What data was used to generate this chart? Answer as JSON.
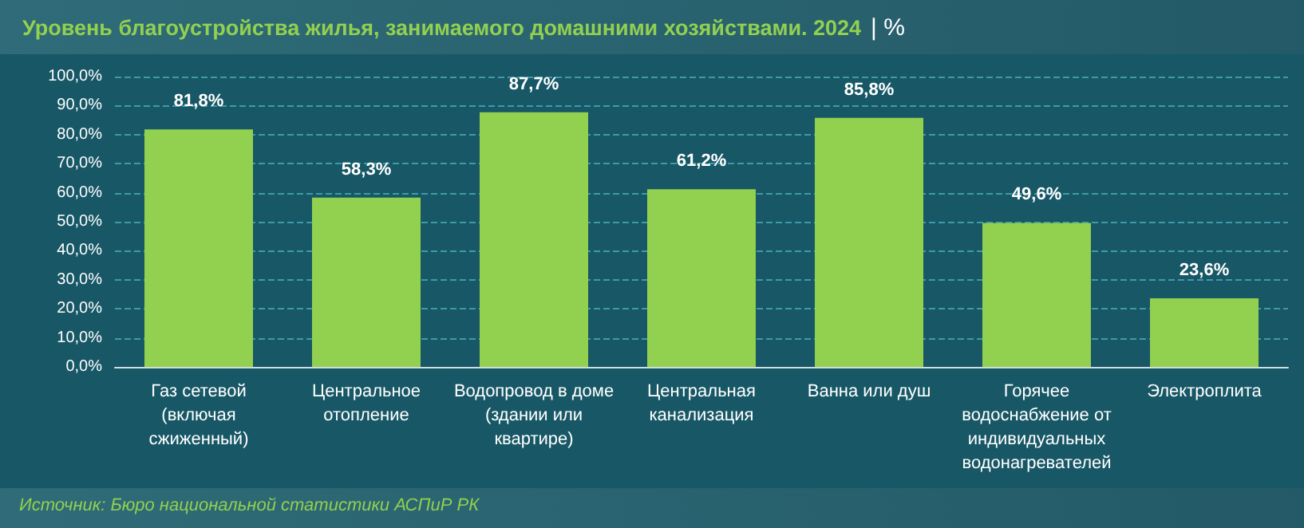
{
  "chart_data": {
    "type": "bar",
    "title": "Уровень благоустройства жилья, занимаемого домашними хозяйствами. 2024",
    "subtitle": "| %",
    "categories": [
      "Газ сетевой (включая сжиженный)",
      "Центральное отопление",
      "Водопровод в доме (здании или квартире)",
      "Центральная канализация",
      "Ванна или душ",
      "Горячее водоснабжение от индивидуальных водонагревателей",
      "Электроплита"
    ],
    "values": [
      81.8,
      58.3,
      87.7,
      61.2,
      85.8,
      49.6,
      23.6
    ],
    "value_labels": [
      "81,8%",
      "58,3%",
      "87,7%",
      "61,2%",
      "85,8%",
      "49,6%",
      "23,6%"
    ],
    "color": "#92d050",
    "ylim": [
      0,
      100
    ],
    "yticks": [
      {
        "value": 0,
        "label": "0,0%"
      },
      {
        "value": 10,
        "label": "10,0%"
      },
      {
        "value": 20,
        "label": "20,0%"
      },
      {
        "value": 30,
        "label": "30,0%"
      },
      {
        "value": 40,
        "label": "40,0%"
      },
      {
        "value": 50,
        "label": "50,0%"
      },
      {
        "value": 60,
        "label": "60,0%"
      },
      {
        "value": 70,
        "label": "70,0%"
      },
      {
        "value": 80,
        "label": "80,0%"
      },
      {
        "value": 90,
        "label": "90,0%"
      },
      {
        "value": 100,
        "label": "100,0%"
      }
    ],
    "grid": "y",
    "annotations": [
      "Источник: Бюро национальной статистики АСПиР РК"
    ]
  }
}
